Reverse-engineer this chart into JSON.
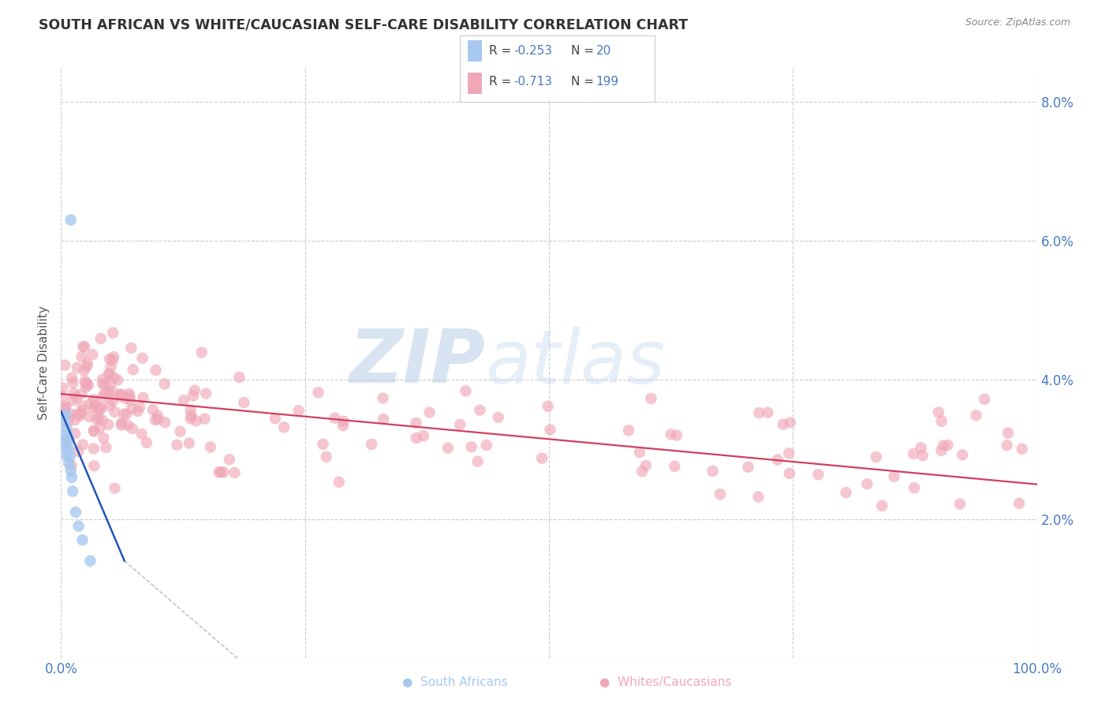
{
  "title": "SOUTH AFRICAN VS WHITE/CAUCASIAN SELF-CARE DISABILITY CORRELATION CHART",
  "source": "Source: ZipAtlas.com",
  "ylabel": "Self-Care Disability",
  "xlim": [
    0,
    1.0
  ],
  "ylim": [
    0,
    0.085
  ],
  "yticks_right": [
    0.02,
    0.04,
    0.06,
    0.08
  ],
  "ytick_labels_right": [
    "2.0%",
    "4.0%",
    "6.0%",
    "8.0%"
  ],
  "grid_color": "#cccccc",
  "bg_color": "#ffffff",
  "watermark_zip": "ZIP",
  "watermark_atlas": "atlas",
  "south_african_color": "#a8c8f0",
  "caucasian_color": "#f0a8b8",
  "legend_text_color": "#4a7abf",
  "legend_label_color": "#333333",
  "title_color": "#333333",
  "source_color": "#888888",
  "tick_color": "#4a7abf",
  "sa_trend_color": "#2255bb",
  "cau_trend_color": "#d04060",
  "dashed_extrap_color": "#bbbbbb"
}
